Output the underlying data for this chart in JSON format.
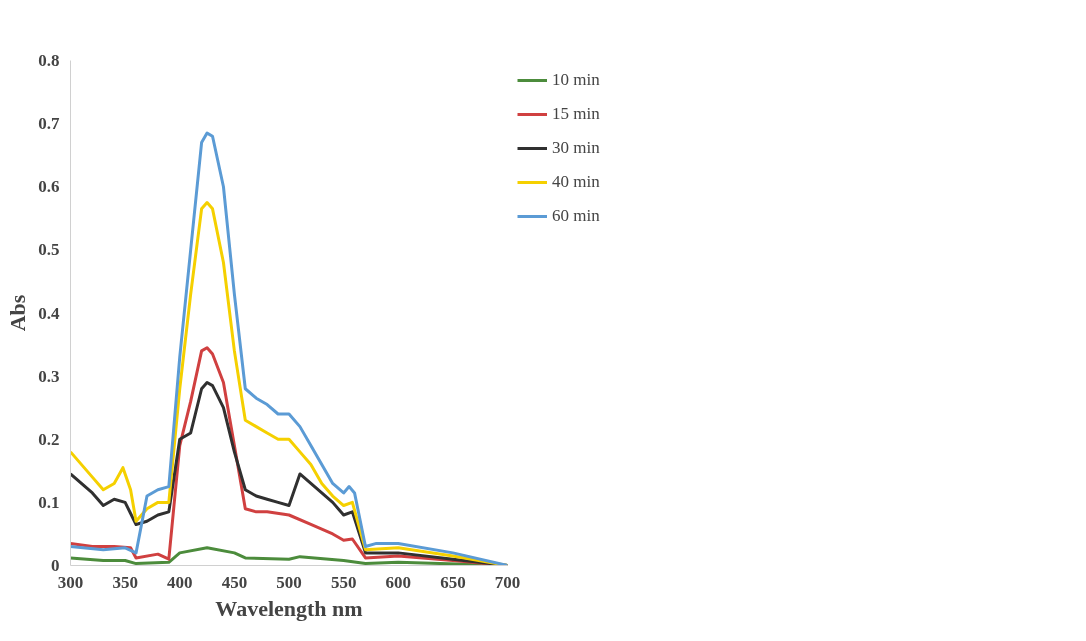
{
  "chart_data": {
    "type": "line",
    "xlabel": "Wavelength nm",
    "ylabel": "Abs",
    "xlim": [
      300,
      700
    ],
    "ylim": [
      0,
      0.8
    ],
    "xticks": [
      300,
      350,
      400,
      450,
      500,
      550,
      600,
      650,
      700
    ],
    "yticks": [
      0,
      0.1,
      0.2,
      0.3,
      0.4,
      0.5,
      0.6,
      0.7,
      0.8
    ],
    "grid": false,
    "legend": "right",
    "marker": "none",
    "line_style": "solid",
    "series": [
      {
        "name": "10 min",
        "color": "#4c8c3c",
        "x": [
          300,
          330,
          350,
          360,
          390,
          400,
          425,
          450,
          460,
          500,
          510,
          550,
          570,
          600,
          700
        ],
        "values": [
          0.012,
          0.008,
          0.008,
          0.003,
          0.005,
          0.02,
          0.028,
          0.02,
          0.012,
          0.01,
          0.014,
          0.008,
          0.003,
          0.005,
          0
        ]
      },
      {
        "name": "15 min",
        "color": "#d04040",
        "x": [
          300,
          320,
          340,
          355,
          360,
          380,
          390,
          395,
          400,
          410,
          420,
          425,
          430,
          440,
          450,
          460,
          470,
          480,
          500,
          520,
          540,
          550,
          558,
          570,
          600,
          650,
          700
        ],
        "values": [
          0.035,
          0.03,
          0.03,
          0.028,
          0.012,
          0.018,
          0.01,
          0.1,
          0.19,
          0.26,
          0.34,
          0.345,
          0.335,
          0.29,
          0.19,
          0.09,
          0.085,
          0.085,
          0.08,
          0.065,
          0.05,
          0.04,
          0.042,
          0.012,
          0.015,
          0.008,
          0
        ]
      },
      {
        "name": "30 min",
        "color": "#303030",
        "x": [
          300,
          320,
          330,
          340,
          350,
          360,
          370,
          380,
          390,
          400,
          410,
          420,
          425,
          430,
          440,
          450,
          460,
          470,
          480,
          490,
          500,
          510,
          520,
          530,
          540,
          550,
          558,
          570,
          600,
          650,
          700
        ],
        "values": [
          0.145,
          0.115,
          0.095,
          0.105,
          0.1,
          0.065,
          0.07,
          0.08,
          0.085,
          0.2,
          0.21,
          0.28,
          0.29,
          0.285,
          0.25,
          0.18,
          0.12,
          0.11,
          0.105,
          0.1,
          0.095,
          0.145,
          0.13,
          0.115,
          0.1,
          0.08,
          0.085,
          0.02,
          0.02,
          0.01,
          0
        ]
      },
      {
        "name": "40 min",
        "color": "#f5d000",
        "x": [
          300,
          320,
          330,
          340,
          348,
          355,
          360,
          370,
          380,
          390,
          400,
          410,
          420,
          425,
          430,
          440,
          450,
          460,
          470,
          480,
          490,
          500,
          510,
          520,
          530,
          540,
          550,
          558,
          570,
          600,
          650,
          700
        ],
        "values": [
          0.18,
          0.14,
          0.12,
          0.13,
          0.155,
          0.12,
          0.07,
          0.09,
          0.1,
          0.1,
          0.28,
          0.43,
          0.565,
          0.575,
          0.565,
          0.48,
          0.34,
          0.23,
          0.22,
          0.21,
          0.2,
          0.2,
          0.18,
          0.16,
          0.13,
          0.11,
          0.095,
          0.1,
          0.025,
          0.028,
          0.015,
          0
        ]
      },
      {
        "name": "60 min",
        "color": "#5b9bd5",
        "x": [
          300,
          330,
          350,
          360,
          370,
          380,
          390,
          400,
          410,
          420,
          425,
          430,
          440,
          450,
          460,
          470,
          480,
          490,
          500,
          510,
          520,
          530,
          540,
          550,
          555,
          560,
          570,
          580,
          600,
          650,
          700
        ],
        "values": [
          0.03,
          0.025,
          0.028,
          0.02,
          0.11,
          0.12,
          0.125,
          0.33,
          0.5,
          0.67,
          0.685,
          0.68,
          0.6,
          0.43,
          0.28,
          0.265,
          0.255,
          0.24,
          0.24,
          0.22,
          0.19,
          0.16,
          0.13,
          0.115,
          0.125,
          0.115,
          0.03,
          0.035,
          0.035,
          0.02,
          0
        ]
      }
    ]
  }
}
